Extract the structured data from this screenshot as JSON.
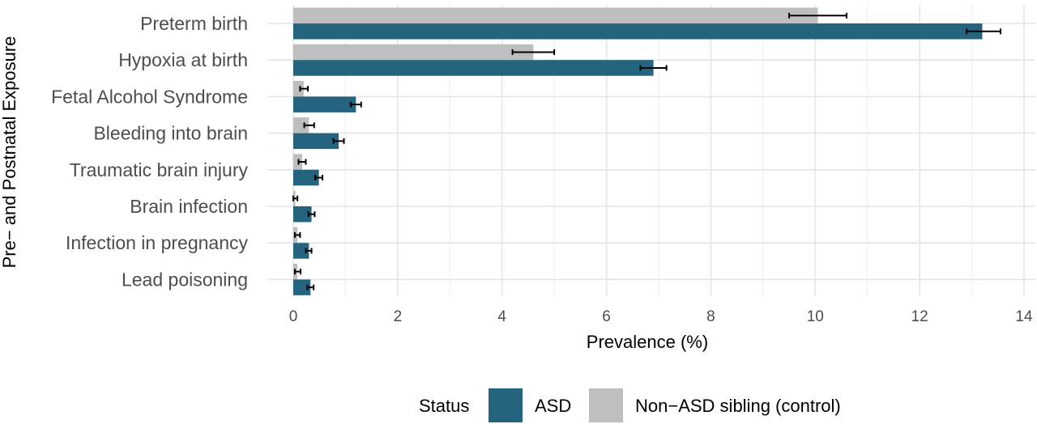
{
  "chart_data": {
    "type": "bar",
    "orientation": "horizontal",
    "categories": [
      "Preterm birth",
      "Hypoxia at birth",
      "Fetal Alcohol Syndrome",
      "Bleeding into brain",
      "Traumatic brain injury",
      "Brain infection",
      "Infection in pregnancy",
      "Lead poisoning"
    ],
    "series": [
      {
        "name": "Non−ASD sibling (control)",
        "color": "#bebebe",
        "values": [
          10.05,
          4.6,
          0.2,
          0.3,
          0.17,
          0.04,
          0.08,
          0.08
        ],
        "error_low": [
          9.5,
          4.2,
          0.13,
          0.21,
          0.1,
          0.0,
          0.03,
          0.03
        ],
        "error_high": [
          10.6,
          5.0,
          0.28,
          0.4,
          0.24,
          0.08,
          0.13,
          0.14
        ]
      },
      {
        "name": "ASD",
        "color": "#24647f",
        "values": [
          13.2,
          6.9,
          1.2,
          0.87,
          0.49,
          0.35,
          0.3,
          0.33
        ],
        "error_low": [
          12.9,
          6.65,
          1.1,
          0.77,
          0.42,
          0.29,
          0.24,
          0.27
        ],
        "error_high": [
          13.55,
          7.15,
          1.3,
          0.97,
          0.56,
          0.41,
          0.35,
          0.39
        ]
      }
    ],
    "xlabel": "Prevalence (%)",
    "ylabel": "Pre− and Postnatal Exposure",
    "xlim": [
      0,
      14
    ],
    "xticks": [
      0,
      2,
      4,
      6,
      8,
      10,
      12,
      14
    ],
    "grid": true,
    "legend": {
      "title": "Status",
      "position": "bottom",
      "entries": [
        {
          "label": "ASD",
          "color": "#24647f"
        },
        {
          "label": "Non−ASD sibling (control)",
          "color": "#bebebe"
        }
      ]
    }
  }
}
